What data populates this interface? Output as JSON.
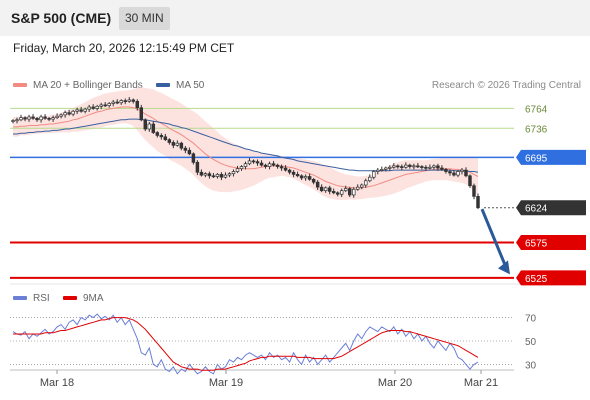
{
  "header": {
    "title": "S&P 500 (CME)",
    "timeframe": "30 MIN"
  },
  "datetime": "Friday, March 20, 2026 12:15:49 PM CET",
  "legend": {
    "ma20": {
      "label": "MA 20 + Bollinger Bands",
      "color": "#f28b82"
    },
    "ma50": {
      "label": "MA 50",
      "color": "#3a5fa0"
    }
  },
  "copyright": "Research © 2026 Trading Central",
  "rsi_legend": {
    "rsi": {
      "label": "RSI",
      "color": "#6b7fd7"
    },
    "ma9": {
      "label": "9MA",
      "color": "#e00000"
    }
  },
  "chart_data": [
    {
      "type": "candlestick",
      "title": "S&P 500 (CME)",
      "x_ticks": [
        "Mar 18",
        "Mar 19",
        "Mar 20",
        "Mar 21"
      ],
      "ylim": [
        6515,
        6790
      ],
      "levels": [
        {
          "value": 6764,
          "label": "6764",
          "color": "#b8d98c",
          "kind": "line"
        },
        {
          "value": 6736,
          "label": "6736",
          "color": "#b8d98c",
          "kind": "line"
        },
        {
          "value": 6695,
          "label": "6695",
          "color": "#2f6fe0",
          "kind": "tag"
        },
        {
          "value": 6624,
          "label": "6624",
          "color": "#333333",
          "kind": "price"
        },
        {
          "value": 6575,
          "label": "6575",
          "color": "#e00000",
          "kind": "tag"
        },
        {
          "value": 6525,
          "label": "6525",
          "color": "#e00000",
          "kind": "tag"
        }
      ],
      "forecast_arrow": {
        "from": 6622,
        "to": 6530,
        "color": "#2a5a9a"
      },
      "close": [
        6747,
        6748,
        6751,
        6749,
        6752,
        6750,
        6748,
        6752,
        6750,
        6749,
        6751,
        6753,
        6755,
        6758,
        6756,
        6760,
        6762,
        6760,
        6763,
        6766,
        6764,
        6767,
        6769,
        6768,
        6771,
        6773,
        6772,
        6775,
        6774,
        6776,
        6774,
        6765,
        6748,
        6735,
        6742,
        6730,
        6726,
        6724,
        6720,
        6716,
        6712,
        6715,
        6708,
        6705,
        6700,
        6688,
        6674,
        6670,
        6672,
        6669,
        6668,
        6671,
        6667,
        6670,
        6672,
        6675,
        6679,
        6682,
        6686,
        6690,
        6689,
        6687,
        6684,
        6682,
        6686,
        6684,
        6682,
        6680,
        6677,
        6674,
        6671,
        6669,
        6666,
        6668,
        6664,
        6660,
        6653,
        6648,
        6652,
        6647,
        6645,
        6643,
        6648,
        6651,
        6642,
        6650,
        6653,
        6656,
        6662,
        6667,
        6675,
        6677,
        6678,
        6680,
        6681,
        6683,
        6682,
        6681,
        6684,
        6682,
        6683,
        6682,
        6681,
        6680,
        6681,
        6683,
        6680,
        6678,
        6675,
        6673,
        6670,
        6675,
        6677,
        6669,
        6655,
        6640,
        6624
      ],
      "ma20": [
        6738,
        6738,
        6739,
        6739,
        6740,
        6740,
        6740,
        6741,
        6741,
        6742,
        6742,
        6743,
        6744,
        6745,
        6746,
        6748,
        6749,
        6751,
        6753,
        6755,
        6757,
        6759,
        6760,
        6762,
        6763,
        6764,
        6765,
        6766,
        6766,
        6766,
        6765,
        6763,
        6760,
        6756,
        6753,
        6750,
        6746,
        6743,
        6740,
        6736,
        6733,
        6730,
        6727,
        6723,
        6719,
        6715,
        6710,
        6705,
        6700,
        6696,
        6692,
        6689,
        6686,
        6684,
        6682,
        6681,
        6680,
        6679,
        6679,
        6679,
        6679,
        6680,
        6681,
        6682,
        6683,
        6683,
        6683,
        6683,
        6682,
        6681,
        6680,
        6678,
        6676,
        6674,
        6672,
        6670,
        6667,
        6664,
        6661,
        6659,
        6657,
        6655,
        6654,
        6653,
        6653,
        6652,
        6652,
        6652,
        6653,
        6654,
        6655,
        6657,
        6659,
        6661,
        6663,
        6665,
        6667,
        6669,
        6671,
        6672,
        6673,
        6674,
        6675,
        6676,
        6677,
        6678,
        6678,
        6679,
        6679,
        6679,
        6678,
        6678,
        6677,
        6676,
        6674,
        6671,
        6668
      ],
      "ma50": [
        6728,
        6728,
        6729,
        6729,
        6730,
        6730,
        6731,
        6731,
        6732,
        6732,
        6733,
        6733,
        6734,
        6735,
        6735,
        6736,
        6737,
        6738,
        6739,
        6740,
        6741,
        6742,
        6743,
        6744,
        6745,
        6746,
        6747,
        6748,
        6748,
        6749,
        6749,
        6749,
        6748,
        6748,
        6747,
        6746,
        6745,
        6744,
        6743,
        6742,
        6740,
        6739,
        6737,
        6736,
        6734,
        6732,
        6730,
        6728,
        6726,
        6724,
        6722,
        6720,
        6718,
        6716,
        6714,
        6712,
        6711,
        6709,
        6707,
        6706,
        6704,
        6703,
        6701,
        6700,
        6699,
        6698,
        6697,
        6695,
        6694,
        6693,
        6692,
        6690,
        6689,
        6688,
        6687,
        6686,
        6685,
        6684,
        6683,
        6682,
        6681,
        6680,
        6679,
        6678,
        6677,
        6677,
        6676,
        6676,
        6676,
        6676,
        6676,
        6676,
        6676,
        6676,
        6676,
        6677,
        6677,
        6677,
        6677,
        6677,
        6677,
        6677,
        6677,
        6677,
        6677,
        6677,
        6677,
        6677,
        6677,
        6677,
        6676,
        6676,
        6676,
        6676,
        6675,
        6675,
        6674
      ],
      "bb_half_width": [
        14,
        14,
        13,
        13,
        13,
        12,
        12,
        12,
        12,
        12,
        13,
        13,
        14,
        15,
        16,
        17,
        18,
        19,
        20,
        21,
        22,
        22,
        23,
        23,
        23,
        23,
        23,
        23,
        23,
        24,
        26,
        30,
        34,
        37,
        39,
        41,
        42,
        43,
        43,
        44,
        44,
        44,
        44,
        44,
        44,
        45,
        46,
        46,
        46,
        45,
        44,
        42,
        40,
        38,
        36,
        34,
        32,
        30,
        28,
        26,
        24,
        22,
        20,
        18,
        17,
        16,
        15,
        14,
        14,
        14,
        15,
        16,
        17,
        18,
        19,
        20,
        21,
        22,
        22,
        22,
        21,
        20,
        19,
        18,
        17,
        17,
        16,
        16,
        16,
        16,
        17,
        18,
        19,
        20,
        21,
        21,
        21,
        21,
        20,
        19,
        18,
        17,
        16,
        15,
        15,
        15,
        15,
        16,
        16,
        17,
        17,
        18,
        18,
        19,
        21,
        24,
        27
      ]
    },
    {
      "type": "line",
      "title": "RSI",
      "ylim": [
        15,
        85
      ],
      "ticks": [
        70,
        50,
        30
      ],
      "series": [
        {
          "name": "RSI",
          "color": "#6b7fd7",
          "values": [
            58,
            56,
            55,
            58,
            52,
            56,
            54,
            57,
            60,
            56,
            58,
            62,
            64,
            60,
            66,
            68,
            64,
            70,
            68,
            72,
            70,
            73,
            69,
            71,
            68,
            72,
            66,
            70,
            64,
            68,
            60,
            52,
            40,
            38,
            44,
            30,
            28,
            34,
            26,
            24,
            28,
            22,
            26,
            24,
            30,
            26,
            22,
            24,
            28,
            24,
            22,
            30,
            26,
            28,
            34,
            32,
            36,
            34,
            38,
            40,
            38,
            36,
            38,
            34,
            40,
            36,
            38,
            34,
            36,
            32,
            40,
            34,
            30,
            38,
            32,
            36,
            30,
            34,
            38,
            32,
            36,
            40,
            44,
            48,
            42,
            50,
            56,
            52,
            58,
            62,
            60,
            58,
            62,
            60,
            58,
            62,
            56,
            60,
            54,
            58,
            52,
            56,
            50,
            54,
            48,
            44,
            50,
            46,
            42,
            48,
            44,
            36,
            34,
            30,
            26,
            30,
            32
          ]
        },
        {
          "name": "9MA",
          "color": "#e00000",
          "values": [
            56,
            56,
            56,
            56,
            56,
            56,
            56,
            56,
            57,
            57,
            57,
            58,
            59,
            59,
            60,
            61,
            62,
            63,
            64,
            65,
            66,
            67,
            68,
            68,
            69,
            70,
            70,
            70,
            70,
            69,
            68,
            66,
            63,
            60,
            56,
            52,
            48,
            44,
            40,
            36,
            32,
            30,
            28,
            27,
            26,
            26,
            26,
            25,
            25,
            25,
            25,
            26,
            26,
            26,
            27,
            28,
            29,
            30,
            31,
            33,
            34,
            35,
            36,
            36,
            37,
            37,
            37,
            37,
            37,
            37,
            37,
            36,
            36,
            36,
            36,
            35,
            35,
            35,
            35,
            35,
            35,
            36,
            37,
            39,
            41,
            43,
            45,
            47,
            49,
            51,
            53,
            55,
            57,
            58,
            59,
            59,
            59,
            59,
            58,
            58,
            57,
            56,
            55,
            54,
            53,
            52,
            51,
            50,
            49,
            48,
            47,
            46,
            44,
            42,
            40,
            38,
            36
          ]
        }
      ]
    }
  ]
}
